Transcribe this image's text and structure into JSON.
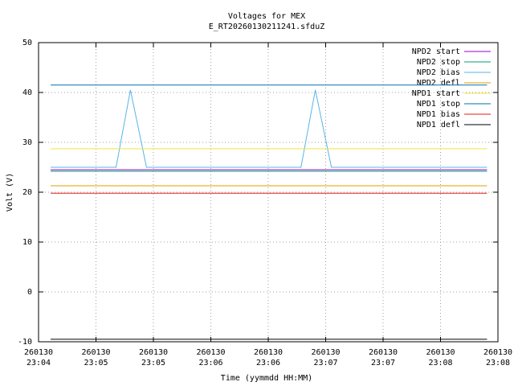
{
  "chart_data": {
    "type": "line",
    "title": "Voltages for MEX",
    "subtitle": "E_RT20260130211241.sfduZ",
    "ylabel": "Volt (V)",
    "xlabel": "Time (yymmdd HH:MM)",
    "ylim": [
      -10,
      50
    ],
    "yticks": [
      -10,
      0,
      10,
      20,
      30,
      40,
      50
    ],
    "xlim": [
      0,
      8
    ],
    "xticks": [
      {
        "value": 0,
        "label": [
          "260130",
          "23:04"
        ]
      },
      {
        "value": 1,
        "label": [
          "260130",
          "23:05"
        ]
      },
      {
        "value": 2,
        "label": [
          "260130",
          "23:05"
        ]
      },
      {
        "value": 3,
        "label": [
          "260130",
          "23:06"
        ]
      },
      {
        "value": 4,
        "label": [
          "260130",
          "23:06"
        ]
      },
      {
        "value": 5,
        "label": [
          "260130",
          "23:07"
        ]
      },
      {
        "value": 6,
        "label": [
          "260130",
          "23:07"
        ]
      },
      {
        "value": 7,
        "label": [
          "260130",
          "23:08"
        ]
      },
      {
        "value": 8,
        "label": [
          "260130",
          "23:08"
        ]
      }
    ],
    "grid": true,
    "legend": "top-right",
    "series": [
      {
        "name": "NPD2 start",
        "color": "#9400d3",
        "x": [
          0.21,
          7.81
        ],
        "values": [
          24.5,
          24.5
        ]
      },
      {
        "name": "NPD2 stop",
        "color": "#009e73",
        "x": [
          0.21,
          7.81
        ],
        "values": [
          24.2,
          24.2
        ]
      },
      {
        "name": "NPD2 bias",
        "color": "#56b4e9",
        "x": [
          0.21,
          1.35,
          1.6,
          1.88,
          4.57,
          4.82,
          5.1,
          7.81
        ],
        "values": [
          25,
          25,
          40.5,
          25,
          25,
          40.5,
          25,
          25
        ]
      },
      {
        "name": "NPD2 defl",
        "color": "#e69f00",
        "x": [
          0.21,
          7.81
        ],
        "values": [
          21.3,
          21.3
        ]
      },
      {
        "name": "NPD1 start",
        "color": "#f0e442",
        "x": [
          0.21,
          7.81
        ],
        "values": [
          28.7,
          28.7
        ]
      },
      {
        "name": "NPD1 stop",
        "color": "#0072b2",
        "x": [
          0.21,
          7.81
        ],
        "values": [
          41.5,
          41.5
        ]
      },
      {
        "name": "NPD1 bias",
        "color": "#e51e10",
        "x": [
          0.21,
          7.81
        ],
        "values": [
          19.8,
          19.8
        ]
      },
      {
        "name": "NPD1 defl",
        "color": "#000000",
        "x": [
          0.21,
          7.81
        ],
        "values": [
          -9.5,
          -9.5
        ]
      }
    ]
  }
}
